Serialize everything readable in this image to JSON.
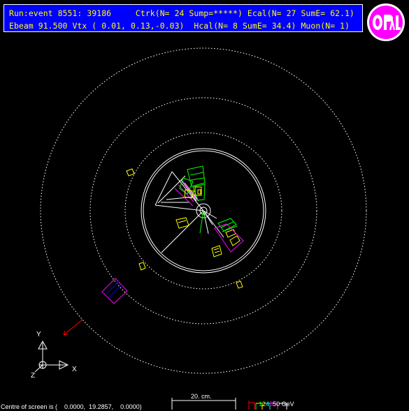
{
  "header": {
    "line1": "Run:event 8551: 39186     Ctrk(N= 24 Sump=*****) Ecal(N= 27 SumE= 62.1)",
    "line2": "Ebeam 91.500 Vtx ( 0.01, 0.13,-0.03)  Hcal(N= 8 SumE= 34.4) Muon(N= 1)"
  },
  "logo": {
    "text": "OPAL"
  },
  "axes": {
    "y": "Y",
    "x": "X",
    "z": "Z"
  },
  "scale": {
    "label": "20. cm."
  },
  "legend": {
    "numbers": [
      {
        "text": "1",
        "color": "#00ff00"
      },
      {
        "text": "2",
        "color": "#ffff00"
      },
      {
        "text": "4",
        "color": "#00ffff"
      },
      {
        "text": "8",
        "color": "#ff00ff"
      }
    ],
    "unit": "50 GeV"
  },
  "footer": {
    "centre": "Centre of screen is (    0.0000,  19.2857,    0.0000)"
  },
  "colors": {
    "background": "#000000",
    "header_bg": "#0000ff",
    "header_text": "#ffff00",
    "track": "#ffffff",
    "ecal": "#ffff00",
    "hcal": "#00ff00",
    "muon": "#ff0000",
    "magenta": "#ff00ff"
  }
}
